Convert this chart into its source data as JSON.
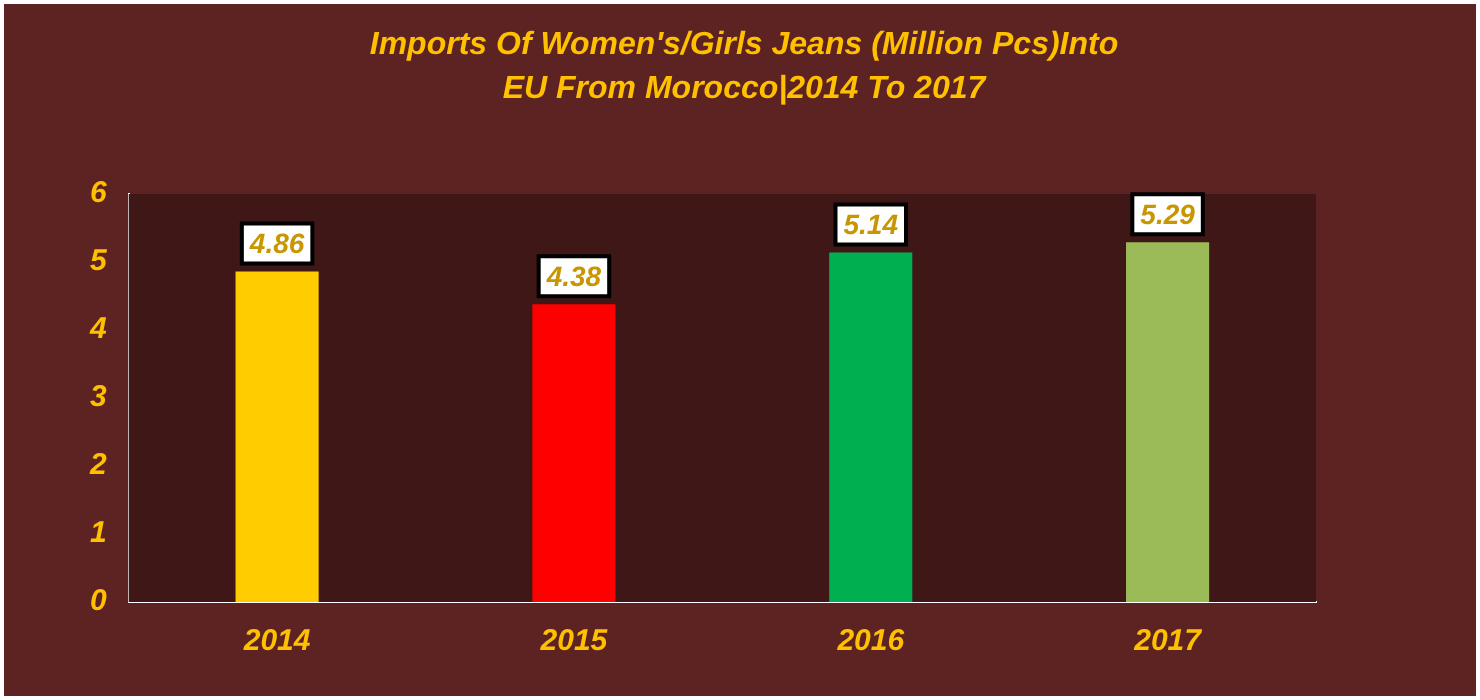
{
  "chart_data": {
    "type": "bar",
    "title": "Imports Of Women's/Girls Jeans (Million Pcs)Into EU From Morocco|2014 To 2017",
    "categories": [
      "2014",
      "2015",
      "2016",
      "2017"
    ],
    "values": [
      4.86,
      4.38,
      5.14,
      5.29
    ],
    "colors": [
      "#ffcc00",
      "#ff0000",
      "#00b050",
      "#9bbb59"
    ],
    "ylim": [
      0,
      6
    ],
    "yticks": [
      0,
      1,
      2,
      3,
      4,
      5,
      6
    ],
    "grid": false,
    "legend": false,
    "data_labels": true
  }
}
